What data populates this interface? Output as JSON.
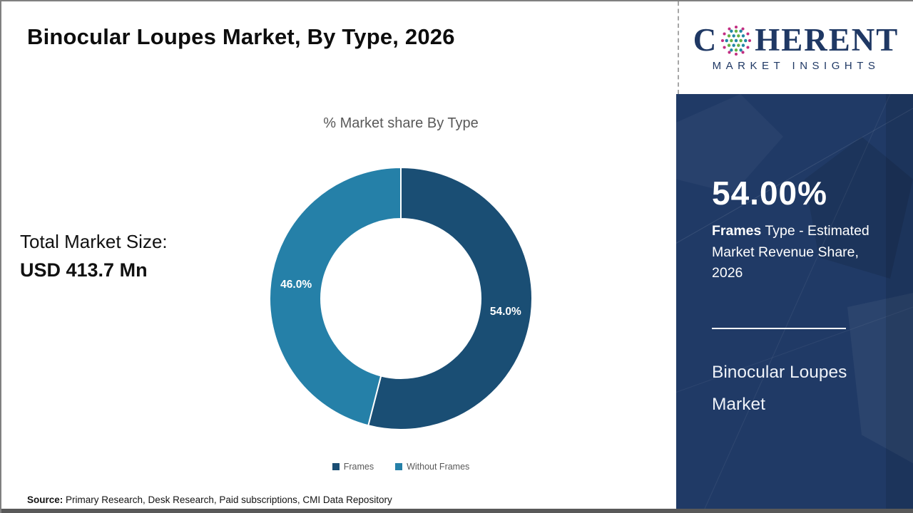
{
  "page": {
    "title": "Binocular Loupes Market, By Type, 2026",
    "source_label": "Source:",
    "source_text": "Primary Research, Desk Research, Paid subscriptions, CMI Data Repository"
  },
  "left_panel": {
    "total_market_label": "Total Market Size:",
    "total_market_value": "USD 413.7 Mn"
  },
  "chart_data": {
    "type": "pie",
    "donut": true,
    "title": "% Market share By Type",
    "categories": [
      "Frames",
      "Without Frames"
    ],
    "values": [
      54.0,
      46.0
    ],
    "slice_labels": [
      "54.0%",
      "46.0%"
    ],
    "colors": [
      "#1A4E74",
      "#2580A8"
    ],
    "label_color": "#ffffff",
    "legend_position": "bottom",
    "start_angle_deg": 0,
    "direction": "clockwise"
  },
  "logo": {
    "word_prefix": "C",
    "word_suffix": "HERENT",
    "subtitle": "MARKET INSIGHTS",
    "navy": "#1F3864",
    "dot_magenta": "#C22E82",
    "dot_teal": "#2187A5",
    "dot_green": "#64B246"
  },
  "sidebar": {
    "background": "#203A66",
    "highlight_value": "54.00%",
    "highlight_bold": "Frames",
    "highlight_text": "Type - Estimated Market Revenue Share, 2026",
    "market_name": "Binocular Loupes Market"
  }
}
